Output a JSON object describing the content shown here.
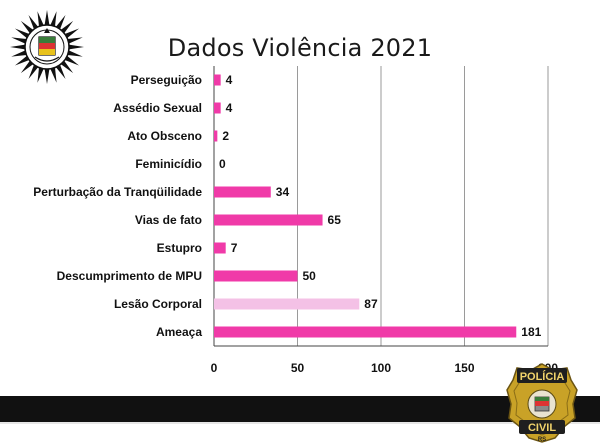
{
  "title": "Dados Violência 2021",
  "logos": {
    "top_left": "rs-state-coat-of-arms",
    "bottom_right": "policia-civil-badge",
    "badge_text": [
      "POLÍCIA",
      "CIVIL",
      "RS"
    ]
  },
  "colors": {
    "bar": "#f03aa8",
    "bar_highlight": "#f4c1e6",
    "grid": "#9a9a9a",
    "footer": "#111111"
  },
  "chart_data": {
    "type": "bar",
    "orientation": "horizontal",
    "title": "Dados Violência 2021",
    "categories": [
      "Perseguição",
      "Assédio Sexual",
      "Ato Obsceno",
      "Feminicídio",
      "Perturbação da Tranqüilidade",
      "Vias de fato",
      "Estupro",
      "Descumprimento de MPU",
      "Lesão Corporal",
      "Ameaça"
    ],
    "values": [
      4,
      4,
      2,
      0,
      34,
      65,
      7,
      50,
      87,
      181
    ],
    "highlight_index": 8,
    "xlim": [
      0,
      200
    ],
    "xticks": [
      0,
      50,
      100,
      150,
      200
    ],
    "grid": true,
    "data_labels": true,
    "legend": false
  }
}
